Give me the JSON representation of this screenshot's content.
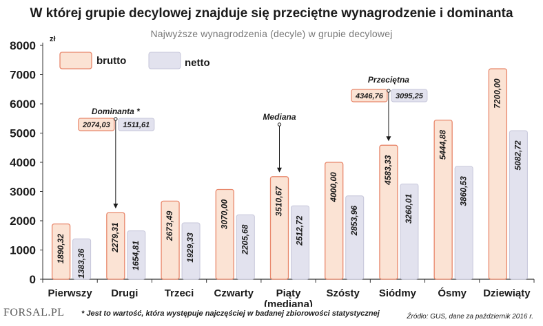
{
  "chart_data": {
    "type": "bar",
    "title": "W której grupie decylowej znajduje się przeciętne wynagrodzenie i dominanta",
    "subtitle": "Najwyższe wynagrodzenia  (decyle)  w grupie decylowej",
    "y_unit": "zł",
    "ylim": [
      0,
      8000
    ],
    "yticks": [
      0,
      1000,
      2000,
      3000,
      4000,
      5000,
      6000,
      7000,
      8000
    ],
    "grid": false,
    "legend_position": "top-left",
    "categories": [
      "Pierwszy",
      "Drugi",
      "Trzeci",
      "Czwarty",
      "Piąty\n(mediana)",
      "Szósty",
      "Siódmy",
      "Ósmy",
      "Dziewiąty"
    ],
    "series": [
      {
        "name": "brutto",
        "values": [
          1890.32,
          2279.31,
          2673.49,
          3070.0,
          3510.67,
          4000.0,
          4583.33,
          5444.88,
          7200.0
        ],
        "labels": [
          "1890,32",
          "2279,31",
          "2673,49",
          "3070,00",
          "3510,67",
          "4000,00",
          "4583,33",
          "5444,88",
          "7200,00"
        ]
      },
      {
        "name": "netto",
        "values": [
          1383.36,
          1654.81,
          1929.33,
          2205.68,
          2512.72,
          2853.96,
          3260.01,
          3860.53,
          5082.72
        ],
        "labels": [
          "1383,36",
          "1654,81",
          "1929,33",
          "2205,68",
          "2512,72",
          "2853,96",
          "3260,01",
          "3860,53",
          "5082,72"
        ]
      }
    ],
    "annotations": [
      {
        "label": "Dominanta *",
        "category_index": 1,
        "points_to": "brutto",
        "value": 2279.31,
        "brutto": "2074,03",
        "netto": "1511,61"
      },
      {
        "label": "Mediana",
        "category_index": 4,
        "points_to": "brutto",
        "value": 3510.67
      },
      {
        "label": "Przeciętna",
        "category_index": 6,
        "points_to": "brutto",
        "value": 4583.33,
        "brutto": "4346,76",
        "netto": "3095,25"
      }
    ],
    "colors": {
      "brutto_fill": "#fbe3d4",
      "brutto_stroke": "#e8866a",
      "netto_fill": "#e2e2ee",
      "netto_stroke": "#c6c6da"
    }
  },
  "footer": {
    "logo": "FORSAL.PL",
    "note": "* Jest to wartość, która występuje najczęściej w badanej zbiorowości statystycznej",
    "source": "Źródło: GUS, dane za październik 2016 r."
  }
}
